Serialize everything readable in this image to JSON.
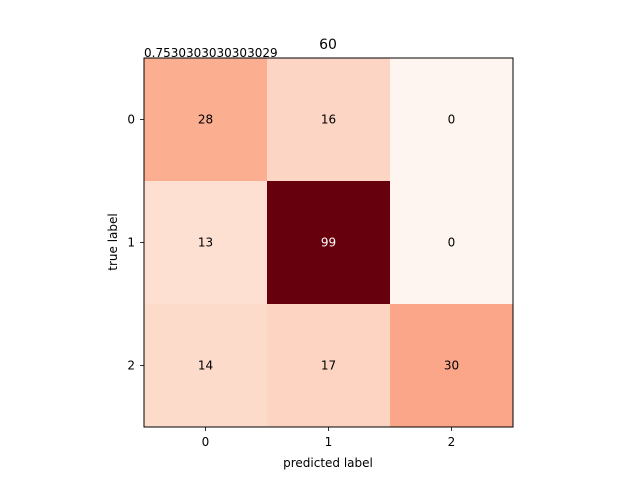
{
  "chart_data": {
    "type": "heatmap",
    "title": "60",
    "annotation": "0.7530303030303029",
    "xlabel": "predicted label",
    "ylabel": "true label",
    "x_ticks": [
      "0",
      "1",
      "2"
    ],
    "y_ticks": [
      "0",
      "1",
      "2"
    ],
    "matrix": [
      [
        28,
        16,
        0
      ],
      [
        13,
        99,
        0
      ],
      [
        14,
        17,
        30
      ]
    ],
    "colormap": "Reds",
    "value_range": [
      0,
      99
    ],
    "cell_colors": [
      [
        "#fcae91",
        "#fdd5c4",
        "#fff5f0"
      ],
      [
        "#fee0d3",
        "#67000d",
        "#fff5f0"
      ],
      [
        "#fddbcb",
        "#fdd4c2",
        "#fca689"
      ]
    ],
    "text_colors": [
      [
        "#000000",
        "#000000",
        "#000000"
      ],
      [
        "#000000",
        "#ffffff",
        "#000000"
      ],
      [
        "#000000",
        "#000000",
        "#000000"
      ]
    ]
  }
}
